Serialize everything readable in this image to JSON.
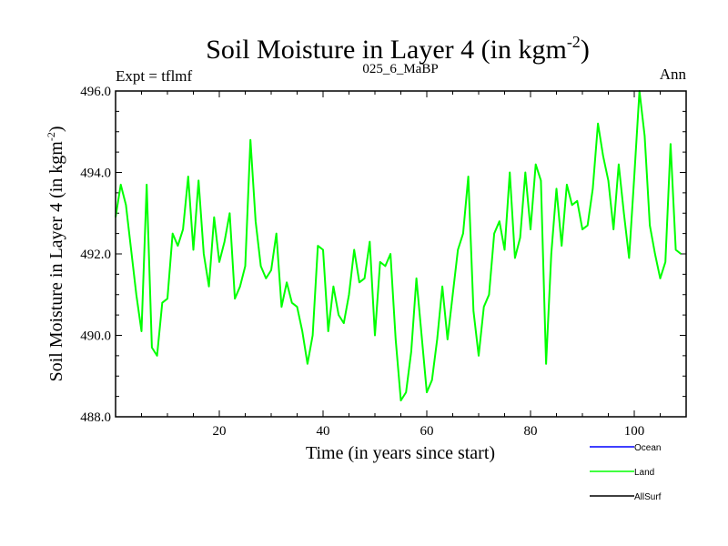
{
  "chart_data": {
    "type": "line",
    "title": "Soil Moisture in Layer 4 (in kgm",
    "title_sup": "-2",
    "title_close": ")",
    "left_label": "Expt = tflmf",
    "center_label": "025_6_MaBP",
    "right_label": "Ann",
    "xlabel": "Time (in years since start)",
    "ylabel": "Soil Moisture in Layer 4 (in kgm",
    "ylabel_sup": "-2",
    "ylabel_close": ")",
    "xlim": [
      0,
      110
    ],
    "ylim": [
      488.0,
      496.0
    ],
    "x_ticks": [
      20,
      40,
      60,
      80,
      100
    ],
    "y_ticks": [
      488.0,
      490.0,
      492.0,
      494.0,
      496.0
    ],
    "y_tick_labels": [
      "488.0",
      "490.0",
      "492.0",
      "494.0",
      "496.0"
    ],
    "legend": [
      {
        "name": "Ocean",
        "color": "#0000ff"
      },
      {
        "name": "Land",
        "color": "#00ff00"
      },
      {
        "name": "AllSurf",
        "color": "#000000"
      }
    ],
    "series": [
      {
        "name": "Land",
        "color": "#00ff00",
        "x_start": 0,
        "x_step": 1,
        "values": [
          492.9,
          493.7,
          493.2,
          492.1,
          491.0,
          490.1,
          493.7,
          489.7,
          489.5,
          490.8,
          490.9,
          492.5,
          492.2,
          492.6,
          493.9,
          492.1,
          493.8,
          492.0,
          491.2,
          492.9,
          491.8,
          492.3,
          493.0,
          490.9,
          491.2,
          491.7,
          494.8,
          492.8,
          491.7,
          491.4,
          491.6,
          492.5,
          490.7,
          491.3,
          490.8,
          490.7,
          490.1,
          489.3,
          490.0,
          492.2,
          492.1,
          490.1,
          491.2,
          490.5,
          490.3,
          491.0,
          492.1,
          491.3,
          491.4,
          492.3,
          490.0,
          491.8,
          491.7,
          492.0,
          489.9,
          488.4,
          488.6,
          489.6,
          491.4,
          490.0,
          488.6,
          488.9,
          489.9,
          491.2,
          489.9,
          491.0,
          492.1,
          492.5,
          493.9,
          490.6,
          489.5,
          490.7,
          491.0,
          492.5,
          492.8,
          492.1,
          494.0,
          491.9,
          492.4,
          494.0,
          492.6,
          494.2,
          493.8,
          489.3,
          492.0,
          493.6,
          492.2,
          493.7,
          493.2,
          493.3,
          492.6,
          492.7,
          493.6,
          495.2,
          494.4,
          493.8,
          492.6,
          494.2,
          493.0,
          491.9,
          493.9,
          496.0,
          494.9,
          492.7,
          492.0,
          491.4,
          491.8,
          494.7,
          492.1,
          492.0
        ]
      }
    ]
  }
}
